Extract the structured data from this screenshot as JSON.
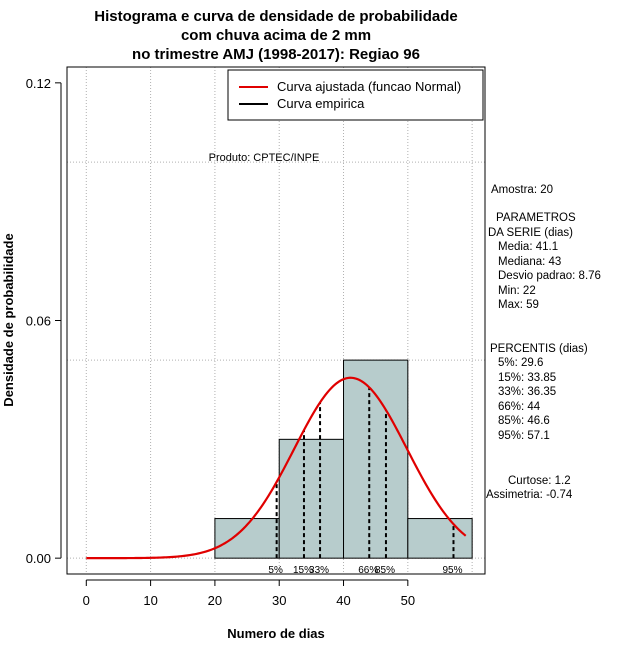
{
  "chart_data": {
    "type": "bar",
    "title_lines": [
      "Histograma e curva de densidade de probabilidade",
      "com chuva acima de 2 mm",
      "no trimestre AMJ (1998-2017): Regiao 96"
    ],
    "xlabel": "Numero de dias",
    "ylabel": "Densidade de probabilidade",
    "xlim": [
      -3,
      62
    ],
    "ylim": [
      -0.004,
      0.124
    ],
    "x_ticks": [
      0,
      10,
      20,
      30,
      40,
      50
    ],
    "y_ticks": [
      0.0,
      0.06,
      0.12
    ],
    "y_tick_labels": [
      "0.00",
      "0.06",
      "0.12"
    ],
    "grid_x": [
      0,
      10,
      20,
      30,
      40,
      50,
      60
    ],
    "grid_y": [
      0.0,
      0.05,
      0.1
    ],
    "bins": [
      {
        "x0": 20,
        "x1": 30,
        "density": 0.01
      },
      {
        "x0": 30,
        "x1": 40,
        "density": 0.03
      },
      {
        "x0": 40,
        "x1": 50,
        "density": 0.05
      },
      {
        "x0": 50,
        "x1": 60,
        "density": 0.01
      }
    ],
    "bar_color": "#b7cccc",
    "normal_curve": {
      "mean": 41.1,
      "sd": 8.76,
      "x_range": [
        0,
        59
      ],
      "color": "#e00000"
    },
    "legend": [
      {
        "label": "Curva ajustada (funcao Normal)",
        "color": "#e00000"
      },
      {
        "label": "Curva empirica",
        "color": "#000000"
      }
    ],
    "percentile_lines": [
      {
        "label": "5%",
        "value": 29.6
      },
      {
        "label": "15%",
        "value": 33.85
      },
      {
        "label": "33%",
        "value": 36.35
      },
      {
        "label": "66%",
        "value": 44
      },
      {
        "label": "85%",
        "value": 46.6
      },
      {
        "label": "95%",
        "value": 57.1
      }
    ],
    "producer": "Produto: CPTEC/INPE",
    "stats_lines": [
      "Amostra: 20",
      "PARAMETROS",
      "DA SERIE (dias)",
      "Media: 41.1",
      "Mediana: 43",
      "Desvio padrao: 8.76",
      "Min: 22",
      "Max: 59",
      "PERCENTIS (dias)",
      "5%: 29.6",
      "15%: 33.85",
      "33%: 36.35",
      "66%: 44",
      "85%: 46.6",
      "95%: 57.1",
      "Curtose: 1.2",
      "Assimetria: -0.74"
    ]
  }
}
